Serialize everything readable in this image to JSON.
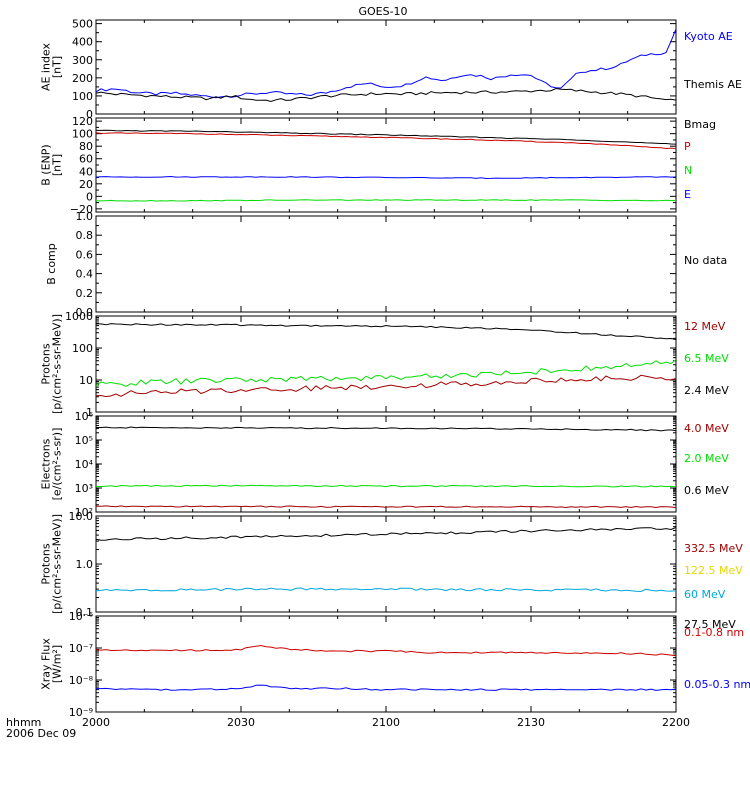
{
  "title": "GOES-10",
  "footer": {
    "time_label": "hhmm",
    "date_label": "2006 Dec 09",
    "x_ticks": [
      "2000",
      "2030",
      "2100",
      "2130",
      "2200"
    ]
  },
  "colors": {
    "black": "#000000",
    "blue": "#0000ff",
    "red": "#cc0000",
    "darkred": "#a00000",
    "green": "#00dd00",
    "yellow": "#e6d800",
    "cyan": "#00a6dd"
  },
  "chart_data": [
    {
      "type": "line",
      "ylabel": [
        "AE index",
        "[nT]"
      ],
      "ylim": [
        0,
        520
      ],
      "yticks": [
        {
          "v": 0,
          "label": "0"
        },
        {
          "v": 100,
          "label": "100"
        },
        {
          "v": 200,
          "label": "200"
        },
        {
          "v": 300,
          "label": "300"
        },
        {
          "v": 400,
          "label": "400"
        },
        {
          "v": 500,
          "label": "500"
        }
      ],
      "x_minutes": [
        0,
        120
      ],
      "series": [
        {
          "name": "Kyoto AE",
          "color": "#0000ff",
          "x": [
            0,
            4,
            8,
            12,
            16,
            20,
            24,
            28,
            32,
            36,
            40,
            44,
            48,
            52,
            56,
            60,
            64,
            68,
            72,
            76,
            80,
            82,
            86,
            90,
            92,
            96,
            100,
            104,
            108,
            110,
            114,
            118,
            120
          ],
          "y": [
            130,
            140,
            120,
            110,
            115,
            105,
            95,
            100,
            110,
            120,
            110,
            105,
            120,
            150,
            170,
            150,
            160,
            205,
            185,
            220,
            210,
            195,
            220,
            215,
            180,
            135,
            235,
            245,
            265,
            295,
            330,
            340,
            470
          ]
        },
        {
          "name": "Themis AE",
          "color": "#000000",
          "x": [
            0,
            4,
            8,
            12,
            16,
            20,
            24,
            28,
            32,
            36,
            40,
            44,
            48,
            52,
            56,
            60,
            64,
            68,
            72,
            76,
            80,
            84,
            88,
            92,
            96,
            100,
            104,
            108,
            112,
            116,
            120
          ],
          "y": [
            120,
            110,
            105,
            100,
            95,
            90,
            85,
            100,
            80,
            75,
            80,
            90,
            100,
            105,
            110,
            112,
            110,
            115,
            118,
            120,
            120,
            122,
            125,
            130,
            135,
            128,
            120,
            112,
            100,
            85,
            70
          ]
        }
      ],
      "legend": [
        {
          "label": "Kyoto AE",
          "color": "#0000ff"
        },
        {
          "label": "Themis AE",
          "color": "#000000"
        }
      ]
    },
    {
      "type": "line",
      "ylabel": [
        "B (ENP)",
        "[nT]"
      ],
      "ylim": [
        -25,
        125
      ],
      "yticks": [
        {
          "v": -20,
          "label": "−20"
        },
        {
          "v": 0,
          "label": "0"
        },
        {
          "v": 20,
          "label": "20"
        },
        {
          "v": 40,
          "label": "40"
        },
        {
          "v": 60,
          "label": "60"
        },
        {
          "v": 80,
          "label": "80"
        },
        {
          "v": 100,
          "label": "100"
        },
        {
          "v": 120,
          "label": "120"
        }
      ],
      "x_minutes": [
        0,
        120
      ],
      "series": [
        {
          "name": "Bmag",
          "color": "#000000",
          "x": [
            0,
            20,
            40,
            60,
            80,
            100,
            120
          ],
          "y": [
            105,
            104,
            101,
            98,
            94,
            90,
            83
          ]
        },
        {
          "name": "P",
          "color": "#cc0000",
          "x": [
            0,
            20,
            40,
            60,
            80,
            100,
            120
          ],
          "y": [
            101,
            100,
            97,
            94,
            90,
            85,
            76
          ]
        },
        {
          "name": "N",
          "color": "#00dd00",
          "x": [
            0,
            20,
            40,
            60,
            80,
            100,
            120
          ],
          "y": [
            -7,
            -7,
            -6,
            -6,
            -6,
            -6,
            -7
          ]
        },
        {
          "name": "E",
          "color": "#0000ff",
          "x": [
            0,
            20,
            40,
            60,
            80,
            100,
            120
          ],
          "y": [
            31,
            31,
            31,
            30,
            29,
            30,
            31
          ]
        }
      ],
      "legend": [
        {
          "label": "Bmag",
          "color": "#000000"
        },
        {
          "label": "P",
          "color": "#cc0000"
        },
        {
          "label": "N",
          "color": "#00dd00"
        },
        {
          "label": "E",
          "color": "#0000ff"
        }
      ]
    },
    {
      "type": "line",
      "ylabel": [
        "B comp"
      ],
      "ylim": [
        0,
        1
      ],
      "yticks": [
        {
          "v": 0,
          "label": "0.0"
        },
        {
          "v": 0.2,
          "label": "0.2"
        },
        {
          "v": 0.4,
          "label": "0.4"
        },
        {
          "v": 0.6,
          "label": "0.6"
        },
        {
          "v": 0.8,
          "label": "0.8"
        },
        {
          "v": 1.0,
          "label": "1.0"
        }
      ],
      "x_minutes": [
        0,
        120
      ],
      "series": [],
      "legend": [
        {
          "label": "No data",
          "color": "#000000"
        }
      ]
    },
    {
      "type": "line",
      "scale": "log",
      "ylabel": [
        "Protons",
        "[p/(cm²-s-sr-MeV)]"
      ],
      "ylim": [
        1,
        1000
      ],
      "yticks": [
        {
          "v": 1,
          "label": "1"
        },
        {
          "v": 10,
          "label": "10"
        },
        {
          "v": 100,
          "label": "100"
        },
        {
          "v": 1000,
          "label": "1000"
        }
      ],
      "x_minutes": [
        0,
        120
      ],
      "series": [
        {
          "name": "12 MeV",
          "color": "#a00000",
          "x": [
            0,
            15,
            30,
            45,
            60,
            75,
            90,
            105,
            120
          ],
          "y": [
            3.5,
            4.2,
            5,
            5.5,
            6.5,
            7.5,
            9.5,
            11,
            12.5
          ]
        },
        {
          "name": "6.5 MeV",
          "color": "#00dd00",
          "x": [
            0,
            15,
            30,
            45,
            60,
            75,
            90,
            105,
            120
          ],
          "y": [
            7,
            9,
            10,
            11,
            12,
            14,
            18,
            24,
            36
          ]
        },
        {
          "name": "2.4 MeV",
          "color": "#000000",
          "x": [
            0,
            15,
            30,
            45,
            60,
            75,
            90,
            105,
            120
          ],
          "y": [
            550,
            540,
            520,
            500,
            480,
            440,
            360,
            260,
            190
          ]
        }
      ],
      "legend": [
        {
          "label": "12 MeV",
          "color": "#a00000"
        },
        {
          "label": "6.5 MeV",
          "color": "#00dd00"
        },
        {
          "label": "2.4 MeV",
          "color": "#000000"
        }
      ]
    },
    {
      "type": "line",
      "scale": "log",
      "ylabel": [
        "Electrons",
        "[e/(cm²-s-sr)]"
      ],
      "ylim": [
        100,
        1000000
      ],
      "yticks": [
        {
          "v": 100,
          "label": "10²"
        },
        {
          "v": 1000,
          "label": "10³"
        },
        {
          "v": 10000,
          "label": "10⁴"
        },
        {
          "v": 100000,
          "label": "10⁵"
        },
        {
          "v": 1000000,
          "label": "10⁶"
        }
      ],
      "x_minutes": [
        0,
        120
      ],
      "series": [
        {
          "name": "4.0 MeV",
          "color": "#a00000",
          "x": [
            0,
            30,
            60,
            90,
            120
          ],
          "y": [
            170,
            170,
            165,
            165,
            160
          ]
        },
        {
          "name": "2.0 MeV",
          "color": "#00dd00",
          "x": [
            0,
            30,
            60,
            90,
            120
          ],
          "y": [
            1200,
            1250,
            1200,
            1200,
            1150
          ]
        },
        {
          "name": "0.6 MeV",
          "color": "#000000",
          "x": [
            0,
            30,
            60,
            90,
            120
          ],
          "y": [
            330000,
            320000,
            310000,
            290000,
            250000
          ]
        }
      ],
      "legend": [
        {
          "label": "4.0 MeV",
          "color": "#a00000"
        },
        {
          "label": "2.0 MeV",
          "color": "#00dd00"
        },
        {
          "label": "0.6 MeV",
          "color": "#000000"
        }
      ]
    },
    {
      "type": "line",
      "scale": "log",
      "ylabel": [
        "Protons",
        "[p/(cm²-s-sr-MeV)]"
      ],
      "ylim": [
        0.1,
        10
      ],
      "yticks": [
        {
          "v": 0.1,
          "label": "0.1"
        },
        {
          "v": 1,
          "label": "1.0"
        },
        {
          "v": 10,
          "label": "10.0"
        }
      ],
      "x_minutes": [
        0,
        120
      ],
      "series": [
        {
          "name": "27.5 MeV",
          "color": "#000000",
          "x": [
            0,
            20,
            40,
            60,
            80,
            100,
            120
          ],
          "y": [
            3.2,
            3.5,
            3.8,
            4.2,
            4.6,
            5.1,
            5.5
          ]
        },
        {
          "name": "60 MeV",
          "color": "#00a6dd",
          "x": [
            0,
            20,
            40,
            60,
            80,
            100,
            120
          ],
          "y": [
            0.28,
            0.29,
            0.3,
            0.3,
            0.29,
            0.29,
            0.28
          ]
        }
      ],
      "legend": [
        {
          "label": "332.5 MeV",
          "color": "#a00000"
        },
        {
          "label": "122.5 MeV",
          "color": "#e6d800"
        },
        {
          "label": "60 MeV",
          "color": "#00a6dd"
        },
        {
          "label": "27.5 MeV",
          "color": "#000000"
        }
      ]
    },
    {
      "type": "line",
      "scale": "log",
      "ylabel": [
        "Xray Flux",
        "[W/m²]"
      ],
      "ylim": [
        1e-09,
        1e-06
      ],
      "yticks": [
        {
          "v": 1e-09,
          "label": "10⁻⁹"
        },
        {
          "v": 1e-08,
          "label": "10⁻⁸"
        },
        {
          "v": 1e-07,
          "label": "10⁻⁷"
        },
        {
          "v": 1e-06,
          "label": "10⁻⁶"
        }
      ],
      "x_minutes": [
        0,
        120
      ],
      "series": [
        {
          "name": "0.1-0.8 nm",
          "color": "#cc0000",
          "x": [
            0,
            10,
            20,
            30,
            34,
            36,
            40,
            50,
            60,
            70,
            80,
            90,
            100,
            110,
            120
          ],
          "y": [
            9e-08,
            8.5e-08,
            8.5e-08,
            8.8e-08,
            1.2e-07,
            1.1e-07,
            9e-08,
            8e-08,
            8e-08,
            7.2e-08,
            7.2e-08,
            7.2e-08,
            7e-08,
            6.8e-08,
            6e-08
          ]
        },
        {
          "name": "0.05-0.3 nm",
          "color": "#0000ff",
          "x": [
            0,
            10,
            20,
            30,
            34,
            36,
            40,
            50,
            60,
            70,
            80,
            90,
            100,
            110,
            120
          ],
          "y": [
            5.5e-09,
            5e-09,
            5e-09,
            5.2e-09,
            7e-09,
            6.5e-09,
            5.2e-09,
            5.5e-09,
            5e-09,
            5e-09,
            5e-09,
            5e-09,
            5e-09,
            5e-09,
            5e-09
          ]
        }
      ],
      "legend": [
        {
          "label": "0.1-0.8 nm",
          "color": "#cc0000"
        },
        {
          "label": "0.05-0.3 nm",
          "color": "#0000ff"
        }
      ]
    }
  ]
}
